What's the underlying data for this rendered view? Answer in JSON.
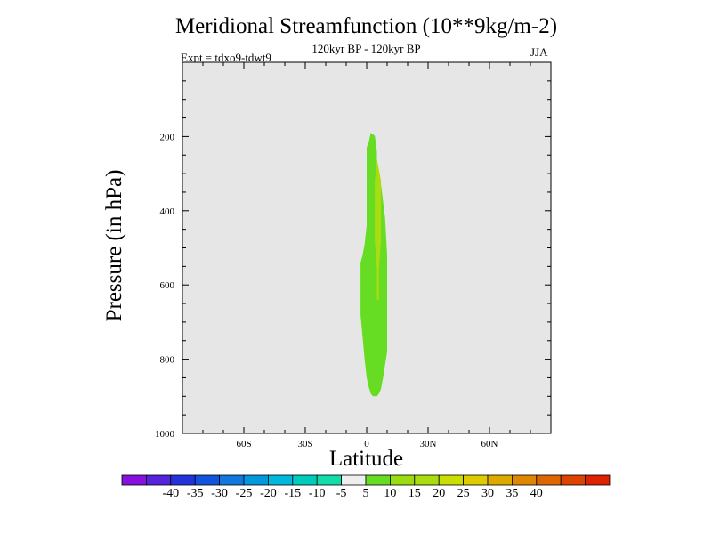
{
  "chart_data": {
    "type": "heatmap",
    "title": "Meridional Streamfunction (10**9kg/m-2)",
    "subtitle": "120kyr BP - 120kyr BP",
    "experiment": "Expt = tdxo9-tdwt9",
    "season": "JJA",
    "xlabel": "Latitude",
    "ylabel": "Pressure (in hPa)",
    "xlim": [
      -90,
      90
    ],
    "ylim": [
      1000,
      0
    ],
    "x_ticks": [
      {
        "value": -60,
        "label": "60S"
      },
      {
        "value": -30,
        "label": "30S"
      },
      {
        "value": 0,
        "label": "0"
      },
      {
        "value": 30,
        "label": "30N"
      },
      {
        "value": 60,
        "label": "60N"
      }
    ],
    "y_ticks": [
      {
        "value": 200,
        "label": "200"
      },
      {
        "value": 400,
        "label": "400"
      },
      {
        "value": 600,
        "label": "600"
      },
      {
        "value": 800,
        "label": "800"
      },
      {
        "value": 1000,
        "label": "1000"
      }
    ],
    "background_color": "#e6e6e6",
    "filled_regions": [
      {
        "range": "5 to 10",
        "color": "#66dd22",
        "outline": [
          [
            2,
            190
          ],
          [
            4,
            198
          ],
          [
            5,
            240
          ],
          [
            5,
            300
          ],
          [
            7,
            330
          ],
          [
            9,
            420
          ],
          [
            10,
            520
          ],
          [
            10,
            640
          ],
          [
            10,
            780
          ],
          [
            8,
            850
          ],
          [
            7,
            880
          ],
          [
            6,
            893
          ],
          [
            5,
            900
          ],
          [
            3,
            900
          ],
          [
            2,
            893
          ],
          [
            1,
            875
          ],
          [
            0,
            850
          ],
          [
            -1,
            800
          ],
          [
            -2,
            740
          ],
          [
            -3,
            680
          ],
          [
            -3,
            600
          ],
          [
            -3,
            540
          ],
          [
            -2,
            520
          ],
          [
            -1,
            490
          ],
          [
            0,
            440
          ],
          [
            0,
            360
          ],
          [
            0,
            280
          ],
          [
            0,
            230
          ],
          [
            1,
            215
          ]
        ]
      },
      {
        "range": "10 to 15",
        "color": "#aadd11",
        "outline": [
          [
            5,
            260
          ],
          [
            7,
            320
          ],
          [
            7,
            400
          ],
          [
            7,
            480
          ],
          [
            6,
            560
          ],
          [
            6,
            640
          ],
          [
            5,
            640
          ],
          [
            5,
            560
          ],
          [
            4,
            480
          ],
          [
            4,
            400
          ],
          [
            4,
            320
          ]
        ]
      }
    ],
    "colorbar": {
      "colors": [
        "#8811dd",
        "#5522dd",
        "#2233dd",
        "#1155dd",
        "#1177dd",
        "#0099dd",
        "#00b8dd",
        "#00ccbb",
        "#11ddaa",
        "#eeeeee",
        "#66dd22",
        "#99dd11",
        "#aadd11",
        "#ccdd00",
        "#ddcc00",
        "#ddaa00",
        "#dd8800",
        "#dd6600",
        "#dd4400",
        "#dd2200"
      ],
      "labels": [
        "-40",
        "-35",
        "-30",
        "-25",
        "-20",
        "-15",
        "-10",
        "-5",
        "5",
        "10",
        "15",
        "20",
        "25",
        "30",
        "35",
        "40"
      ]
    }
  }
}
